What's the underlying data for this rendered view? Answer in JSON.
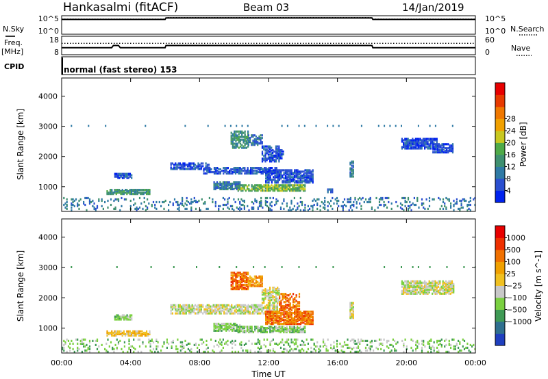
{
  "header": {
    "station": "Hankasalmi (fitACF)",
    "beam": "Beam 03",
    "date": "14/Jan/2019"
  },
  "aux_labels": {
    "nsky": "N.Sky",
    "nsearch": "N.Search",
    "freq": "Freq.",
    "mhz": "[MHz]",
    "nave": "Nave",
    "cpid": "CPID",
    "cpid_value": "normal (fast stereo) 153"
  },
  "chart_data": [
    {
      "type": "line",
      "panel": "noise",
      "yticks_left": [
        "10^5",
        "10^0"
      ],
      "yticks_right": [
        "10^5",
        "10^0"
      ],
      "series": [
        {
          "name": "N.Sky",
          "style": "solid",
          "x": [
            0,
            6,
            6.05,
            18,
            18.05,
            24
          ],
          "y": [
            0.8,
            0.8,
            0.88,
            0.88,
            0.8,
            0.8
          ]
        },
        {
          "name": "N.Search",
          "style": "dotted",
          "x": [
            0,
            6,
            6.05,
            18,
            18.05,
            24
          ],
          "y": [
            0.82,
            0.82,
            0.9,
            0.9,
            0.82,
            0.82
          ]
        }
      ]
    },
    {
      "type": "line",
      "panel": "frequency",
      "yticks_left": [
        "18",
        "8"
      ],
      "yticks_right": [
        "60",
        "0"
      ],
      "series": [
        {
          "name": "Freq.",
          "style": "solid",
          "x": [
            0,
            2.9,
            3.0,
            3.3,
            3.4,
            6,
            6.05,
            18,
            18.05,
            24
          ],
          "y": [
            0.38,
            0.38,
            0.5,
            0.5,
            0.38,
            0.38,
            0.5,
            0.5,
            0.38,
            0.38
          ]
        },
        {
          "name": "Nave",
          "style": "dotted",
          "x": [
            0,
            24
          ],
          "y": [
            0.62,
            0.62
          ]
        }
      ]
    },
    {
      "type": "heatmap",
      "panel": "power",
      "title": "",
      "xlabel": "",
      "ylabel": "Slant Range [km]",
      "xlim": [
        0,
        24
      ],
      "ylim": [
        180,
        4600
      ],
      "yticks": [
        1000,
        2000,
        3000,
        4000
      ],
      "colorbar": {
        "label": "Power [dB]",
        "ticks": [
          "4",
          "8",
          "12",
          "16",
          "20",
          "24",
          "28"
        ],
        "colors": [
          "#0022ee",
          "#2a4fd0",
          "#2f7aa5",
          "#3f9070",
          "#4faa48",
          "#c8c820",
          "#f0a000",
          "#f07800",
          "#e83a00",
          "#e80000"
        ]
      },
      "patches": [
        {
          "t0": 3.05,
          "t1": 4.02,
          "r0": 1250,
          "r1": 1430,
          "c": 1,
          "d": 0.85
        },
        {
          "t0": 2.6,
          "t1": 5.1,
          "r0": 720,
          "r1": 880,
          "c": 3,
          "d": 0.8
        },
        {
          "t0": 6.3,
          "t1": 8.5,
          "r0": 1550,
          "r1": 1750,
          "c": 1,
          "d": 0.65
        },
        {
          "t0": 8.2,
          "t1": 12.5,
          "r0": 1400,
          "r1": 1600,
          "c": 1,
          "d": 0.7
        },
        {
          "t0": 11.8,
          "t1": 14.6,
          "r0": 1100,
          "r1": 1550,
          "c": 1,
          "d": 0.8
        },
        {
          "t0": 8.8,
          "t1": 10.3,
          "r0": 880,
          "r1": 1150,
          "c": 2,
          "d": 0.8
        },
        {
          "t0": 10.2,
          "t1": 14.1,
          "r0": 830,
          "r1": 1050,
          "c": 4,
          "d": 0.75
        },
        {
          "t0": 9.8,
          "t1": 10.8,
          "r0": 2250,
          "r1": 2800,
          "c": 3,
          "d": 0.75
        },
        {
          "t0": 10.8,
          "t1": 11.6,
          "r0": 2350,
          "r1": 2700,
          "c": 2,
          "d": 0.65
        },
        {
          "t0": 11.6,
          "t1": 12.6,
          "r0": 1800,
          "r1": 2300,
          "c": 1,
          "d": 0.6
        },
        {
          "t0": 12.2,
          "t1": 12.9,
          "r0": 1900,
          "r1": 2200,
          "c": 1,
          "d": 0.45
        },
        {
          "t0": 16.7,
          "t1": 16.95,
          "r0": 1300,
          "r1": 1800,
          "c": 2,
          "d": 0.75
        },
        {
          "t0": 15.4,
          "t1": 15.7,
          "r0": 780,
          "r1": 880,
          "c": 1,
          "d": 0.7
        },
        {
          "t0": 19.7,
          "t1": 21.8,
          "r0": 2230,
          "r1": 2550,
          "c": 1,
          "d": 0.8
        },
        {
          "t0": 21.5,
          "t1": 22.7,
          "r0": 2100,
          "r1": 2400,
          "c": 1,
          "d": 0.7
        },
        {
          "t0": 0.0,
          "t1": 24.0,
          "r0": 180,
          "r1": 620,
          "c": 2,
          "d": 0.18
        }
      ]
    },
    {
      "type": "heatmap",
      "panel": "velocity",
      "title": "",
      "xlabel": "Time UT",
      "ylabel": "Slant Range [km]",
      "xlim": [
        0,
        24
      ],
      "ylim": [
        180,
        4600
      ],
      "xticks": [
        "00:00",
        "04:00",
        "08:00",
        "12:00",
        "16:00",
        "20:00",
        "00:00"
      ],
      "yticks": [
        1000,
        2000,
        3000,
        4000
      ],
      "colorbar": {
        "label": "Velocity [m s^-1]",
        "ticks": [
          "1000",
          "500",
          "100",
          "25",
          "−25",
          "−100",
          "−500",
          "−1000"
        ],
        "colors": [
          "#1f3fbf",
          "#2f6f8f",
          "#3f9a55",
          "#7ad040",
          "#c8c8c8",
          "#f0c020",
          "#f0a000",
          "#f07000",
          "#ee3000",
          "#e80000"
        ]
      },
      "patches": [
        {
          "t0": 3.05,
          "t1": 4.02,
          "r0": 1250,
          "r1": 1430,
          "c": 3,
          "d": 0.85
        },
        {
          "t0": 2.6,
          "t1": 5.1,
          "r0": 720,
          "r1": 880,
          "c": 5,
          "d": 0.8
        },
        {
          "t0": 6.3,
          "t1": 12.5,
          "r0": 1450,
          "r1": 1750,
          "c": 4,
          "d": 0.7
        },
        {
          "t0": 11.8,
          "t1": 14.6,
          "r0": 1100,
          "r1": 1550,
          "c": 7,
          "d": 0.8
        },
        {
          "t0": 8.8,
          "t1": 10.3,
          "r0": 880,
          "r1": 1150,
          "c": 3,
          "d": 0.8
        },
        {
          "t0": 10.2,
          "t1": 14.1,
          "r0": 830,
          "r1": 1050,
          "c": 3,
          "d": 0.75
        },
        {
          "t0": 9.8,
          "t1": 10.8,
          "r0": 2250,
          "r1": 2800,
          "c": 7,
          "d": 0.75
        },
        {
          "t0": 10.8,
          "t1": 11.6,
          "r0": 2350,
          "r1": 2700,
          "c": 6,
          "d": 0.65
        },
        {
          "t0": 11.6,
          "t1": 12.6,
          "r0": 1800,
          "r1": 2300,
          "c": 4,
          "d": 0.6
        },
        {
          "t0": 12.6,
          "t1": 13.8,
          "r0": 1550,
          "r1": 2100,
          "c": 7,
          "d": 0.55
        },
        {
          "t0": 16.7,
          "t1": 16.95,
          "r0": 1300,
          "r1": 1800,
          "c": 4,
          "d": 0.75
        },
        {
          "t0": 19.7,
          "t1": 22.7,
          "r0": 2100,
          "r1": 2550,
          "c": 4,
          "d": 0.8
        },
        {
          "t0": 0.0,
          "t1": 24.0,
          "r0": 180,
          "r1": 620,
          "c": 3,
          "d": 0.18
        }
      ]
    }
  ]
}
